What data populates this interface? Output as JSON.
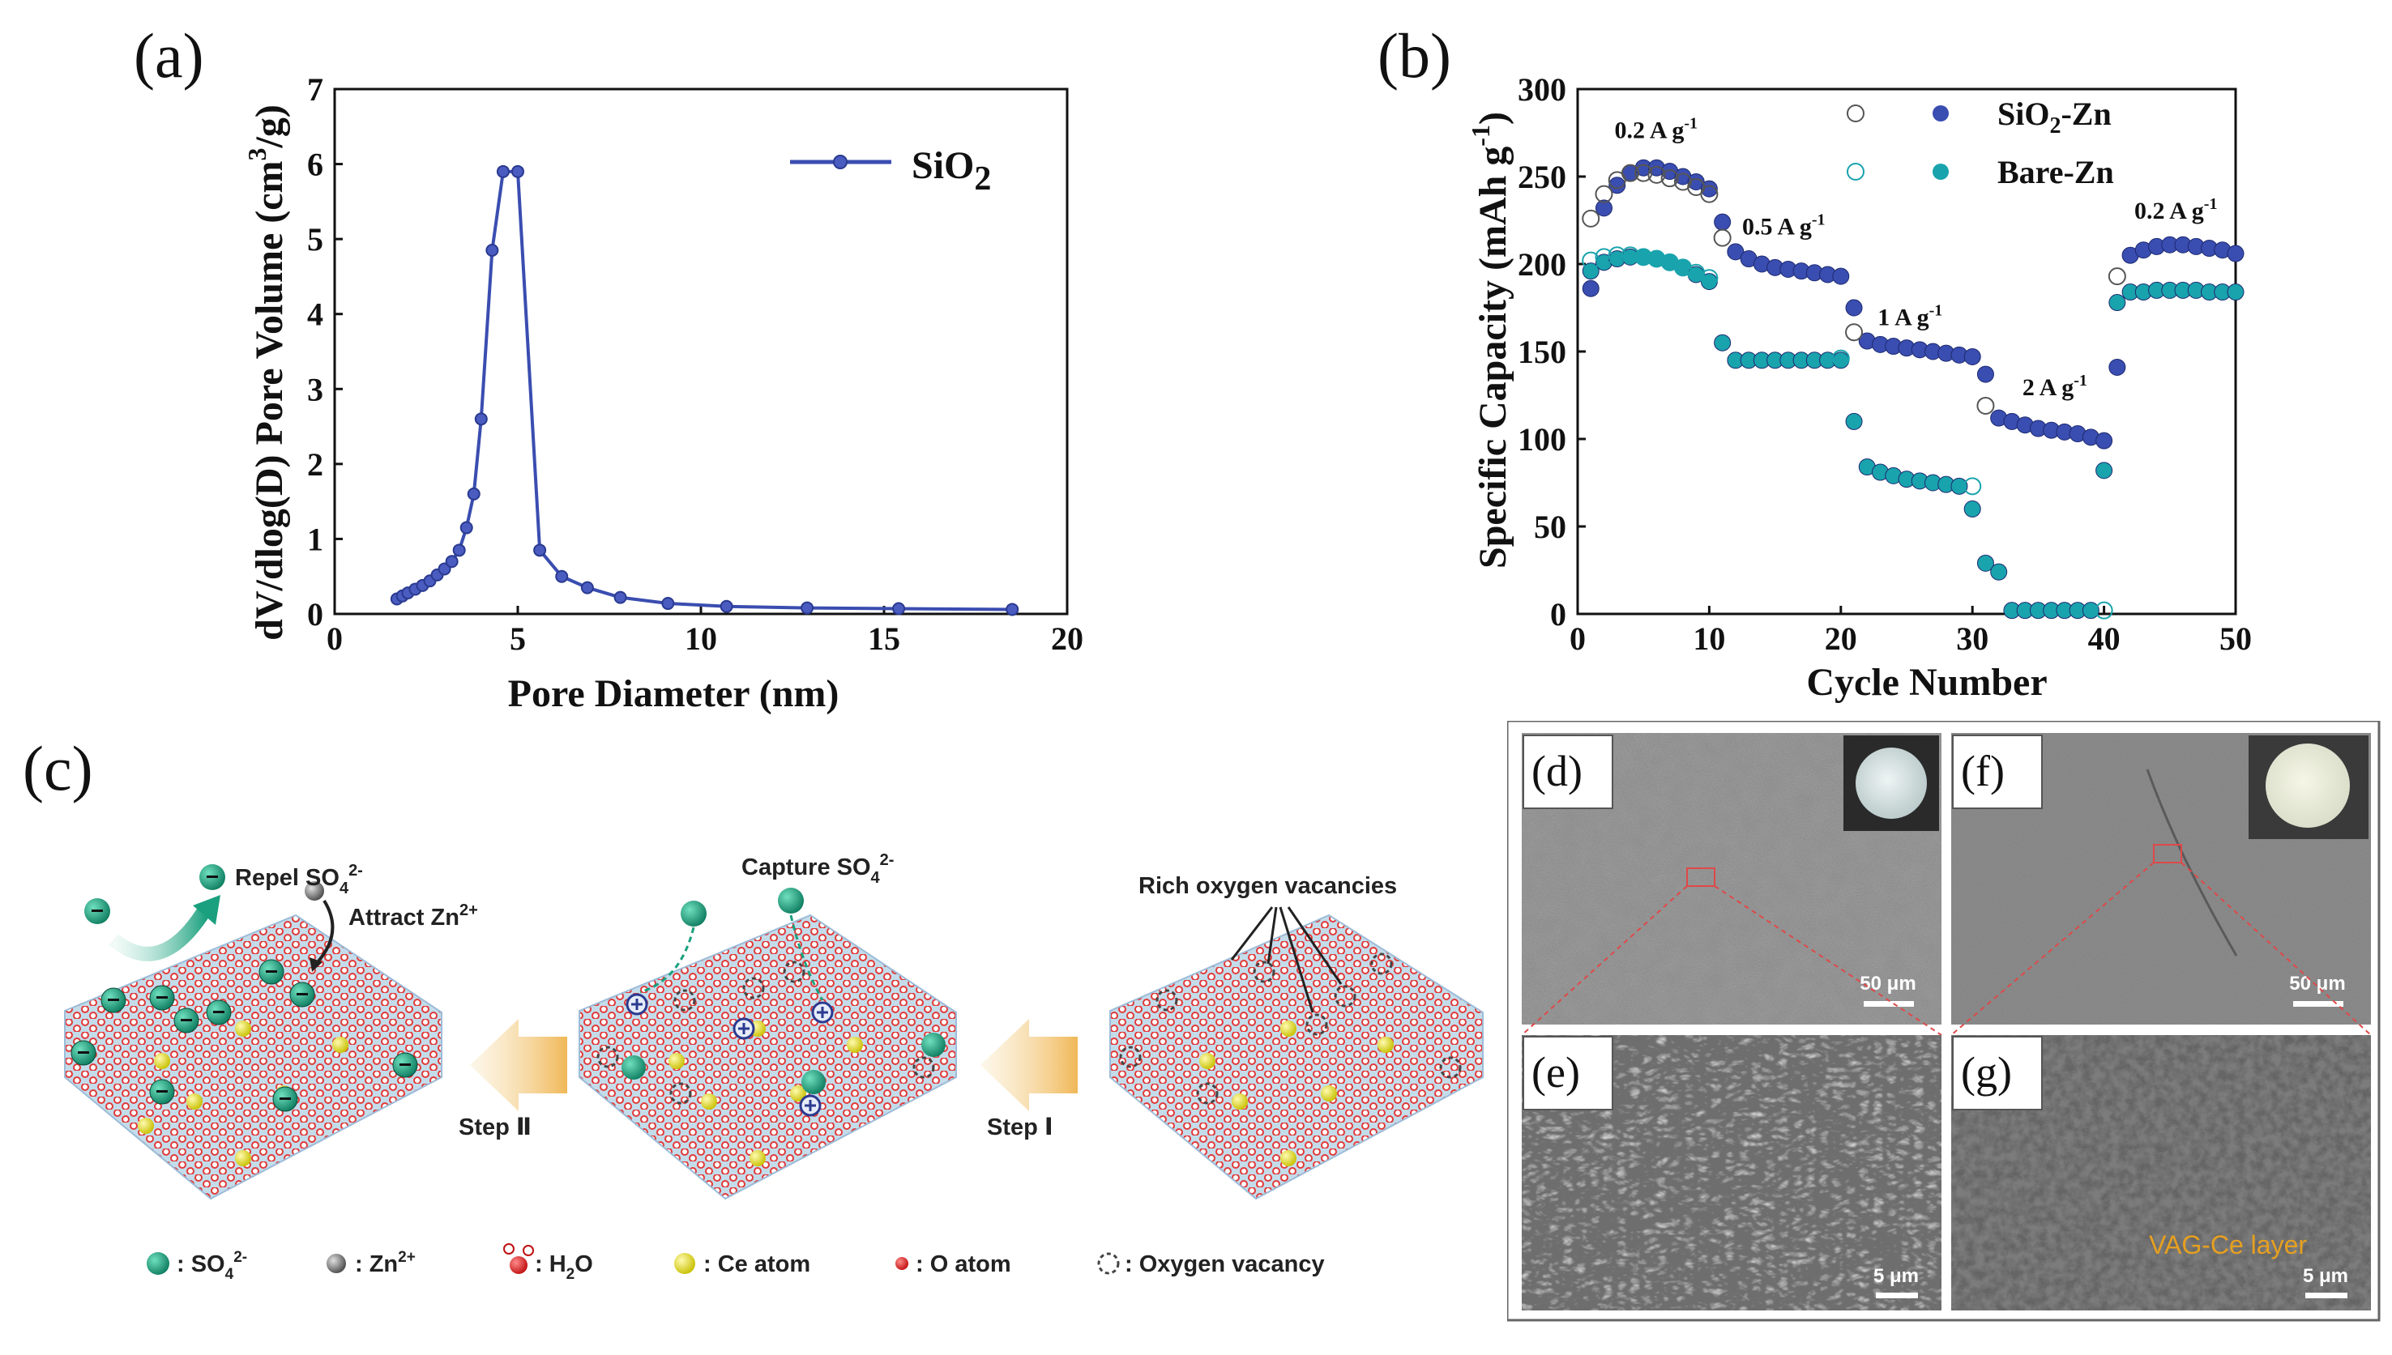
{
  "panels": {
    "a": "(a)",
    "b": "(b)",
    "c": "(c)",
    "d": "(d)",
    "e": "(e)",
    "f": "(f)",
    "g": "(g)"
  },
  "colors": {
    "blue": "#3a4db0",
    "teal": "#19a3ad",
    "green": "#19a082",
    "red": "#e03030",
    "yellow": "#e6e020",
    "lattice": "#b7cfe6"
  },
  "chart_data": [
    {
      "type": "line",
      "xlabel": "Pore Diameter (nm)",
      "ylabel": "dV/dlog(D) Pore Volume (cm³/g)",
      "ylabel_parts": {
        "main": "dV/dlog(D) Pore Volume (cm",
        "sup": "3",
        "tail": "/g)"
      },
      "xlim": [
        0,
        20
      ],
      "ylim": [
        0,
        7
      ],
      "xticks": [
        0,
        5,
        10,
        15,
        20
      ],
      "yticks": [
        0,
        1,
        2,
        3,
        4,
        5,
        6,
        7
      ],
      "legend": {
        "label": "SiO",
        "sub": "2"
      },
      "series": [
        {
          "name": "SiO2",
          "x": [
            1.7,
            1.85,
            2.0,
            2.2,
            2.4,
            2.6,
            2.8,
            3.0,
            3.2,
            3.4,
            3.6,
            3.8,
            4.0,
            4.3,
            4.6,
            5.0,
            5.6,
            6.2,
            6.9,
            7.8,
            9.1,
            10.7,
            12.9,
            15.4,
            18.5
          ],
          "y": [
            0.2,
            0.24,
            0.28,
            0.33,
            0.38,
            0.44,
            0.52,
            0.6,
            0.7,
            0.85,
            1.15,
            1.6,
            2.6,
            4.85,
            5.9,
            5.9,
            0.85,
            0.5,
            0.35,
            0.22,
            0.14,
            0.1,
            0.08,
            0.07,
            0.06
          ]
        }
      ]
    },
    {
      "type": "scatter",
      "xlabel": "Cycle Number",
      "ylabel": "Specific Capacity (mAh g⁻¹)",
      "ylabel_parts": {
        "main": "Specific Capacity (mAh g",
        "sup": "-1",
        "tail": ")"
      },
      "xlim": [
        0,
        50
      ],
      "ylim": [
        0,
        300
      ],
      "xticks": [
        0,
        10,
        20,
        30,
        40,
        50
      ],
      "yticks": [
        0,
        50,
        100,
        150,
        200,
        250,
        300
      ],
      "annotations": [
        {
          "text": "0.2 A g",
          "sup": "-1",
          "x": 2.8,
          "y": 272
        },
        {
          "text": "0.5 A g",
          "sup": "-1",
          "x": 12.5,
          "y": 217
        },
        {
          "text": "1 A g",
          "sup": "-1",
          "x": 22.8,
          "y": 165
        },
        {
          "text": "2 A g",
          "sup": "-1",
          "x": 33.8,
          "y": 125
        },
        {
          "text": "0.2 A g",
          "sup": "-1",
          "x": 42.3,
          "y": 226
        }
      ],
      "series": [
        {
          "name": "SiO2-Zn",
          "legend": {
            "main": "SiO",
            "sub": "2",
            "tail": "-Zn"
          },
          "fill": "#3a4db0",
          "x": [
            1,
            2,
            3,
            4,
            5,
            6,
            7,
            8,
            9,
            10,
            11,
            12,
            13,
            14,
            15,
            16,
            17,
            18,
            19,
            20,
            21,
            22,
            23,
            24,
            25,
            26,
            27,
            28,
            29,
            30,
            31,
            32,
            33,
            34,
            35,
            36,
            37,
            38,
            39,
            40,
            41,
            42,
            43,
            44,
            45,
            46,
            47,
            48,
            49,
            50
          ],
          "y": [
            186,
            232,
            245,
            252,
            255,
            255,
            253,
            250,
            247,
            243,
            224,
            207,
            203,
            200,
            198,
            197,
            196,
            195,
            194,
            193,
            175,
            156,
            154,
            153,
            152,
            151,
            150,
            149,
            148,
            147,
            137,
            112,
            110,
            108,
            106,
            105,
            104,
            103,
            101,
            99,
            141,
            205,
            208,
            210,
            211,
            211,
            210,
            209,
            208,
            206
          ]
        },
        {
          "name": "SiO2-Zn (open)",
          "fill": "none",
          "stroke": "#555",
          "x": [
            1,
            2,
            3,
            4,
            5,
            6,
            7,
            8,
            9,
            10,
            11,
            21,
            31,
            41
          ],
          "y": [
            226,
            240,
            248,
            252,
            252,
            251,
            249,
            247,
            244,
            240,
            215,
            161,
            119,
            193
          ]
        },
        {
          "name": "Bare-Zn",
          "legend": {
            "main": "Bare-Zn"
          },
          "fill": "#19a3ad",
          "x": [
            1,
            2,
            3,
            4,
            5,
            6,
            7,
            8,
            9,
            10,
            11,
            12,
            13,
            14,
            15,
            16,
            17,
            18,
            19,
            20,
            21,
            22,
            23,
            24,
            25,
            26,
            27,
            28,
            29,
            30,
            31,
            32,
            33,
            34,
            35,
            36,
            37,
            38,
            39,
            40,
            41,
            42,
            43,
            44,
            45,
            46,
            47,
            48,
            49,
            50
          ],
          "y": [
            196,
            201,
            203,
            204,
            204,
            203,
            201,
            198,
            194,
            190,
            155,
            145,
            145,
            145,
            145,
            145,
            145,
            145,
            145,
            145,
            110,
            84,
            81,
            79,
            77,
            76,
            75,
            74,
            73,
            60,
            29,
            24,
            2,
            2,
            2,
            2,
            2,
            2,
            2,
            82,
            178,
            184,
            184,
            185,
            185,
            185,
            185,
            184,
            184,
            184
          ]
        },
        {
          "name": "Bare-Zn (open)",
          "fill": "none",
          "stroke": "#19a3ad",
          "x": [
            1,
            2,
            3,
            4,
            5,
            6,
            7,
            8,
            9,
            10,
            20,
            30,
            40
          ],
          "y": [
            202,
            204,
            205,
            205,
            204,
            203,
            201,
            198,
            195,
            192,
            146,
            73,
            2
          ]
        }
      ]
    }
  ],
  "schematic": {
    "labels": {
      "repel": "Repel SO",
      "repel_sup": "2-",
      "repel_sub": "4",
      "attract": "Attract Zn",
      "attract_sup": "2+",
      "capture": "Capture SO",
      "capture_sup": "2-",
      "capture_sub": "4",
      "vacancies": "Rich oxygen vacancies",
      "step2": "Step Ⅱ",
      "step1": "Step Ⅰ"
    },
    "legend": [
      {
        "main": ": SO",
        "sub": "4",
        "sup": "2-"
      },
      {
        "main": ": Zn",
        "sup": "2+"
      },
      {
        "main": ": H",
        "sub": "2",
        "tail": "O"
      },
      {
        "main": ": Ce atom"
      },
      {
        "main": ": O atom"
      },
      {
        "main": ": Oxygen vacancy"
      }
    ]
  },
  "sem": {
    "scale_d": "50 μm",
    "scale_f": "50 μm",
    "scale_e": "5 μm",
    "scale_g": "5 μm",
    "layer": "VAG-Ce layer"
  }
}
